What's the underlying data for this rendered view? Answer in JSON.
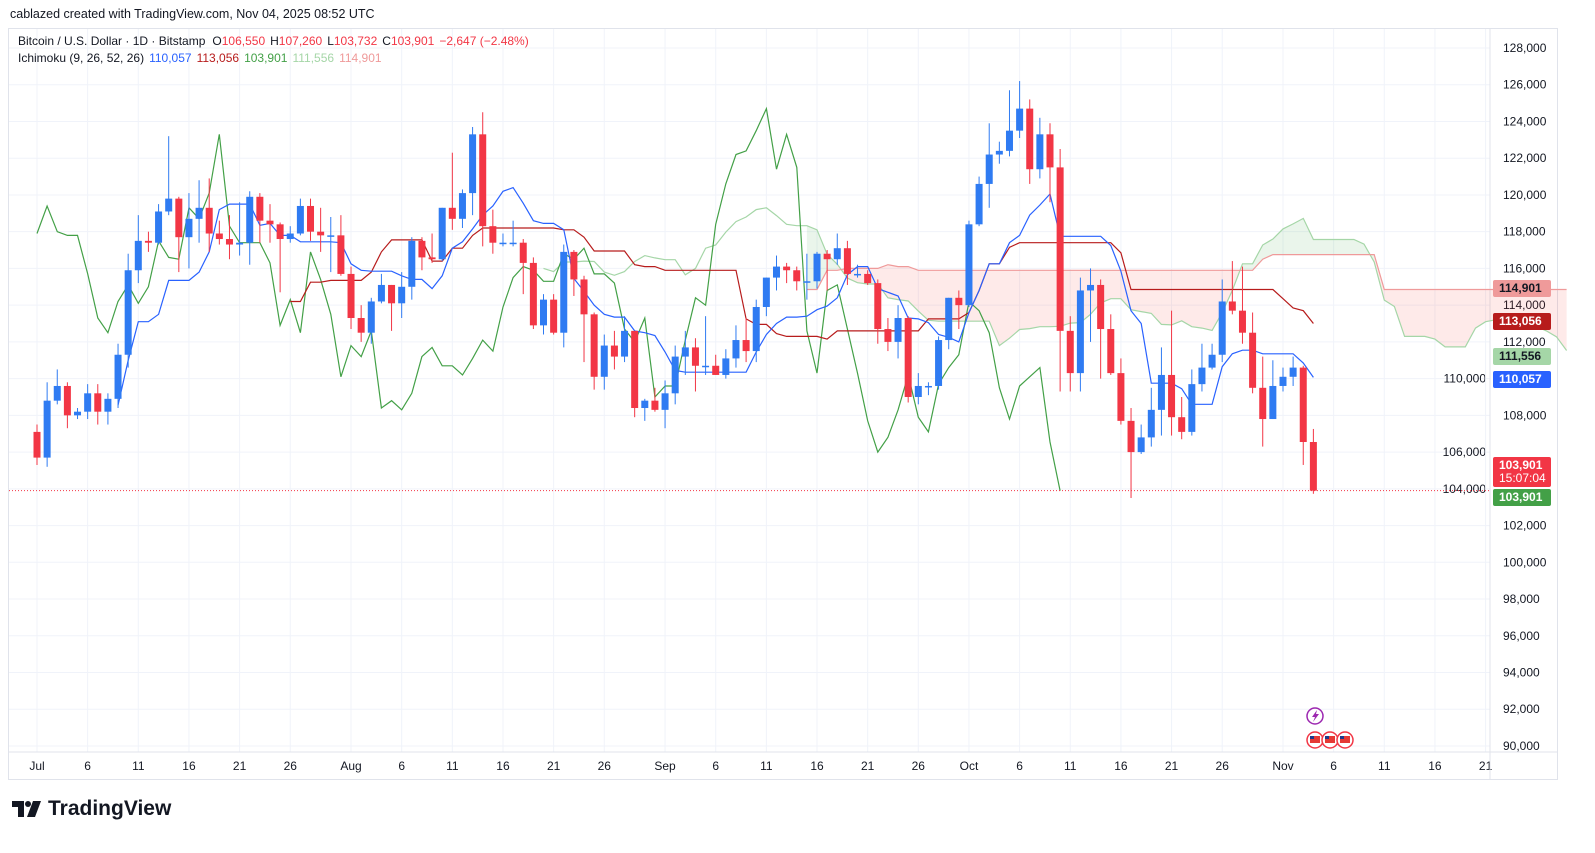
{
  "credit": "cablazed created with TradingView.com, Nov 04, 2025 08:52 UTC",
  "legend": {
    "symbol": "Bitcoin / U.S. Dollar · 1D · Bitstamp",
    "open_label": "O",
    "open": "106,550",
    "high_label": "H",
    "high": "107,260",
    "low_label": "L",
    "low": "103,732",
    "close_label": "C",
    "close": "103,901",
    "change": "−2,647 (−2.48%)",
    "indicator": "Ichimoku (9, 26, 52, 26)",
    "tenkan": "110,057",
    "kijun": "113,056",
    "chikou": "103,901",
    "span_a": "111,556",
    "span_b": "114,901"
  },
  "badges": {
    "span_b": {
      "text": "114,901",
      "price": 114901,
      "color": "#ef9a9a"
    },
    "kijun": {
      "text": "113,056",
      "price": 113056,
      "color": "#b71c1c"
    },
    "span_a": {
      "text": "111,556",
      "price": 111556,
      "color": "#a5d6a7"
    },
    "tenkan": {
      "text": "110,057",
      "price": 110057,
      "color": "#2962ff"
    },
    "last": {
      "text": "103,901",
      "countdown": "15:07:04",
      "price": 103901,
      "color": "#f23645"
    },
    "chikou": {
      "text": "103,901",
      "price": 103901,
      "color": "#43a047"
    }
  },
  "logo": "TradingView",
  "colors": {
    "up": "#2f7bf2",
    "down": "#f23645",
    "tenkan": "#2962ff",
    "kijun": "#b71c1c",
    "chikou": "#43a047",
    "span_a": "#a5d6a7",
    "span_b": "#ef9a9a"
  },
  "chart_data": {
    "type": "candlestick",
    "start_date": "2025-07-01",
    "ichimoku": {
      "tenkan": 9,
      "kijun": 26,
      "span_b": 52,
      "displacement": 26
    },
    "ylim": [
      90000,
      128000
    ],
    "y_ticks": [
      "90,000",
      "92,000",
      "94,000",
      "96,000",
      "98,000",
      "100,000",
      "102,000",
      "104,000",
      "106,000",
      "108,000",
      "110,000",
      "112,000",
      "114,000",
      "116,000",
      "118,000",
      "120,000",
      "122,000",
      "124,000",
      "126,000",
      "128,000"
    ],
    "x_ticks": [
      {
        "label": "Jul",
        "day": 0
      },
      {
        "label": "6",
        "day": 5
      },
      {
        "label": "11",
        "day": 10
      },
      {
        "label": "16",
        "day": 15
      },
      {
        "label": "21",
        "day": 20
      },
      {
        "label": "26",
        "day": 25
      },
      {
        "label": "Aug",
        "day": 31
      },
      {
        "label": "6",
        "day": 36
      },
      {
        "label": "11",
        "day": 41
      },
      {
        "label": "16",
        "day": 46
      },
      {
        "label": "21",
        "day": 51
      },
      {
        "label": "26",
        "day": 56
      },
      {
        "label": "Sep",
        "day": 62
      },
      {
        "label": "6",
        "day": 67
      },
      {
        "label": "11",
        "day": 72
      },
      {
        "label": "16",
        "day": 77
      },
      {
        "label": "21",
        "day": 82
      },
      {
        "label": "26",
        "day": 87
      },
      {
        "label": "Oct",
        "day": 92
      },
      {
        "label": "6",
        "day": 97
      },
      {
        "label": "11",
        "day": 102
      },
      {
        "label": "16",
        "day": 107
      },
      {
        "label": "21",
        "day": 112
      },
      {
        "label": "26",
        "day": 117
      },
      {
        "label": "Nov",
        "day": 123
      },
      {
        "label": "6",
        "day": 128
      },
      {
        "label": "11",
        "day": 133
      },
      {
        "label": "16",
        "day": 138
      },
      {
        "label": "21",
        "day": 143
      }
    ],
    "ohlc_thousands": [
      [
        107.1,
        107.5,
        105.3,
        105.7
      ],
      [
        105.7,
        109.8,
        105.2,
        108.8
      ],
      [
        108.8,
        110.5,
        108.6,
        109.6
      ],
      [
        109.6,
        109.8,
        107.3,
        108.0
      ],
      [
        108.0,
        108.4,
        107.8,
        108.2
      ],
      [
        108.2,
        109.7,
        107.8,
        109.2
      ],
      [
        109.2,
        109.7,
        107.5,
        108.2
      ],
      [
        108.2,
        109.2,
        107.5,
        108.9
      ],
      [
        108.9,
        111.9,
        108.4,
        111.3
      ],
      [
        111.3,
        116.8,
        110.6,
        115.9
      ],
      [
        115.9,
        118.9,
        115.2,
        117.5
      ],
      [
        117.5,
        118.0,
        116.9,
        117.4
      ],
      [
        117.4,
        119.5,
        117.3,
        119.1
      ],
      [
        119.1,
        123.2,
        118.9,
        119.8
      ],
      [
        119.8,
        119.9,
        115.8,
        117.7
      ],
      [
        117.7,
        120.1,
        116.0,
        118.7
      ],
      [
        118.7,
        120.8,
        117.4,
        119.3
      ],
      [
        119.3,
        120.9,
        116.9,
        117.9
      ],
      [
        117.9,
        118.6,
        117.3,
        117.6
      ],
      [
        117.6,
        118.9,
        116.5,
        117.3
      ],
      [
        117.3,
        119.6,
        116.7,
        117.4
      ],
      [
        117.4,
        120.2,
        116.2,
        119.9
      ],
      [
        119.9,
        120.1,
        117.4,
        118.6
      ],
      [
        118.6,
        119.5,
        117.4,
        118.4
      ],
      [
        118.4,
        118.5,
        114.7,
        117.6
      ],
      [
        117.6,
        118.3,
        117.4,
        117.9
      ],
      [
        117.9,
        119.8,
        117.8,
        119.4
      ],
      [
        119.4,
        119.8,
        117.5,
        118.0
      ],
      [
        118.0,
        119.3,
        116.9,
        117.8
      ],
      [
        117.8,
        118.8,
        115.8,
        117.8
      ],
      [
        117.8,
        118.9,
        115.6,
        115.7
      ],
      [
        115.7,
        116.1,
        112.7,
        113.3
      ],
      [
        113.3,
        114.0,
        112.0,
        112.5
      ],
      [
        112.5,
        114.4,
        111.9,
        114.2
      ],
      [
        114.2,
        115.7,
        114.1,
        115.1
      ],
      [
        115.1,
        115.1,
        112.6,
        114.1
      ],
      [
        114.1,
        115.8,
        113.3,
        115.0
      ],
      [
        115.0,
        117.7,
        114.3,
        117.5
      ],
      [
        117.5,
        117.7,
        115.9,
        116.6
      ],
      [
        116.6,
        117.9,
        116.3,
        116.5
      ],
      [
        116.5,
        119.3,
        116.4,
        119.3
      ],
      [
        119.3,
        122.3,
        118.1,
        118.7
      ],
      [
        118.7,
        120.3,
        118.2,
        120.1
      ],
      [
        120.1,
        123.7,
        118.9,
        123.3
      ],
      [
        123.3,
        124.5,
        117.2,
        118.3
      ],
      [
        118.3,
        119.2,
        116.8,
        117.4
      ],
      [
        117.4,
        117.9,
        117.2,
        117.4
      ],
      [
        117.4,
        118.6,
        117.2,
        117.4
      ],
      [
        117.4,
        117.6,
        114.6,
        116.3
      ],
      [
        116.3,
        116.6,
        112.7,
        112.9
      ],
      [
        112.9,
        114.6,
        112.4,
        114.3
      ],
      [
        114.3,
        114.6,
        112.4,
        112.5
      ],
      [
        112.5,
        117.3,
        111.7,
        116.9
      ],
      [
        116.9,
        117.0,
        114.5,
        115.4
      ],
      [
        115.4,
        115.6,
        110.9,
        113.5
      ],
      [
        113.5,
        113.6,
        109.4,
        110.1
      ],
      [
        110.1,
        112.4,
        109.4,
        111.8
      ],
      [
        111.8,
        112.6,
        110.5,
        111.2
      ],
      [
        111.2,
        113.4,
        110.9,
        112.6
      ],
      [
        112.6,
        112.6,
        107.9,
        108.4
      ],
      [
        108.4,
        108.9,
        107.7,
        108.8
      ],
      [
        108.8,
        109.5,
        108.2,
        108.3
      ],
      [
        108.3,
        109.9,
        107.3,
        109.2
      ],
      [
        109.2,
        111.8,
        108.6,
        111.2
      ],
      [
        111.2,
        112.6,
        110.2,
        111.7
      ],
      [
        111.7,
        112.2,
        109.3,
        110.7
      ],
      [
        110.7,
        113.4,
        110.2,
        110.7
      ],
      [
        110.7,
        111.3,
        110.2,
        110.2
      ],
      [
        110.2,
        111.6,
        110.0,
        111.1
      ],
      [
        111.1,
        112.9,
        110.6,
        112.1
      ],
      [
        112.1,
        113.3,
        110.9,
        111.5
      ],
      [
        111.5,
        114.3,
        110.9,
        113.9
      ],
      [
        113.9,
        115.5,
        113.4,
        115.5
      ],
      [
        115.5,
        116.7,
        114.8,
        116.1
      ],
      [
        116.1,
        116.3,
        115.2,
        115.9
      ],
      [
        115.9,
        116.1,
        114.8,
        115.3
      ],
      [
        115.3,
        116.8,
        114.3,
        115.3
      ],
      [
        115.3,
        116.9,
        114.9,
        116.8
      ],
      [
        116.8,
        117.0,
        114.8,
        116.5
      ],
      [
        116.5,
        117.9,
        116.2,
        117.1
      ],
      [
        117.1,
        117.5,
        115.1,
        115.7
      ],
      [
        115.7,
        116.2,
        115.5,
        115.7
      ],
      [
        115.7,
        115.9,
        115.1,
        115.2
      ],
      [
        115.2,
        115.4,
        111.9,
        112.7
      ],
      [
        112.7,
        113.3,
        111.5,
        112.0
      ],
      [
        112.0,
        114.0,
        111.1,
        113.3
      ],
      [
        113.3,
        113.4,
        108.7,
        109.0
      ],
      [
        109.0,
        110.3,
        108.6,
        109.6
      ],
      [
        109.6,
        109.8,
        109.1,
        109.6
      ],
      [
        109.6,
        112.3,
        109.4,
        112.1
      ],
      [
        112.1,
        114.4,
        111.6,
        114.4
      ],
      [
        114.4,
        114.8,
        112.7,
        114.0
      ],
      [
        114.0,
        118.6,
        113.9,
        118.4
      ],
      [
        118.4,
        121.0,
        118.3,
        120.6
      ],
      [
        120.6,
        123.9,
        119.3,
        122.2
      ],
      [
        122.2,
        122.9,
        121.7,
        122.4
      ],
      [
        122.4,
        125.7,
        122.1,
        123.5
      ],
      [
        123.5,
        126.2,
        123.1,
        124.7
      ],
      [
        124.7,
        125.2,
        120.6,
        121.4
      ],
      [
        121.4,
        124.2,
        120.9,
        123.3
      ],
      [
        123.3,
        123.9,
        119.6,
        121.5
      ],
      [
        121.5,
        122.5,
        109.3,
        112.6
      ],
      [
        112.6,
        113.4,
        109.3,
        110.3
      ],
      [
        110.3,
        115.5,
        109.3,
        114.8
      ],
      [
        114.8,
        116.0,
        112.0,
        115.1
      ],
      [
        115.1,
        115.4,
        110.0,
        112.7
      ],
      [
        112.7,
        113.5,
        110.2,
        110.3
      ],
      [
        110.3,
        111.1,
        107.5,
        107.7
      ],
      [
        107.7,
        108.4,
        103.5,
        106.0
      ],
      [
        106.0,
        107.5,
        105.9,
        106.8
      ],
      [
        106.8,
        109.5,
        106.3,
        108.3
      ],
      [
        108.3,
        111.7,
        106.9,
        110.2
      ],
      [
        110.2,
        113.7,
        106.9,
        107.9
      ],
      [
        107.9,
        109.0,
        106.7,
        107.1
      ],
      [
        107.1,
        110.5,
        106.9,
        109.7
      ],
      [
        109.7,
        111.9,
        109.3,
        110.6
      ],
      [
        110.6,
        111.9,
        110.5,
        111.3
      ],
      [
        111.3,
        115.4,
        110.9,
        114.2
      ],
      [
        114.2,
        116.4,
        113.5,
        113.7
      ],
      [
        113.7,
        116.1,
        111.9,
        112.5
      ],
      [
        112.5,
        113.6,
        109.2,
        109.5
      ],
      [
        109.5,
        111.2,
        106.3,
        107.8
      ],
      [
        107.8,
        111.0,
        107.8,
        109.6
      ],
      [
        109.6,
        110.6,
        109.3,
        110.1
      ],
      [
        110.1,
        111.2,
        109.6,
        110.6
      ],
      [
        110.6,
        110.7,
        105.3,
        106.55
      ],
      [
        106.55,
        107.26,
        103.73,
        103.9
      ]
    ]
  }
}
